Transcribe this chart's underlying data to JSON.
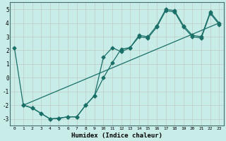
{
  "xlabel": "Humidex (Indice chaleur)",
  "background_color": "#c8ece8",
  "grid_color": "#c0d0c8",
  "line_color": "#1a7068",
  "xlim": [
    -0.5,
    23.5
  ],
  "ylim": [
    -3.5,
    5.5
  ],
  "xticks": [
    0,
    1,
    2,
    3,
    4,
    5,
    6,
    7,
    8,
    9,
    10,
    11,
    12,
    13,
    14,
    15,
    16,
    17,
    18,
    19,
    20,
    21,
    22,
    23
  ],
  "yticks": [
    -3,
    -2,
    -1,
    0,
    1,
    2,
    3,
    4,
    5
  ],
  "line1_x": [
    0,
    1,
    2,
    3,
    4,
    5,
    6,
    7,
    8,
    9,
    10,
    11,
    12,
    13,
    14,
    15,
    16,
    17,
    18,
    19,
    20,
    21,
    22,
    23
  ],
  "line1_y": [
    2.2,
    -2.0,
    -2.2,
    -2.6,
    -3.0,
    -2.95,
    -2.85,
    -2.85,
    -2.0,
    -1.3,
    1.5,
    2.2,
    1.9,
    2.2,
    3.1,
    3.0,
    3.8,
    5.0,
    4.9,
    3.8,
    3.1,
    3.0,
    4.8,
    4.0
  ],
  "line2_x": [
    1,
    2,
    3,
    4,
    5,
    6,
    7,
    8,
    9,
    10,
    11,
    12,
    13,
    14,
    15,
    16,
    17,
    18,
    19,
    20,
    21,
    22,
    23
  ],
  "line2_y": [
    -2.0,
    -2.2,
    -2.6,
    -3.0,
    -2.95,
    -2.85,
    -2.85,
    -2.0,
    -1.3,
    0.0,
    1.1,
    2.1,
    2.2,
    3.0,
    2.9,
    3.7,
    4.9,
    4.8,
    3.7,
    3.0,
    2.9,
    4.7,
    3.9
  ],
  "line3_x": [
    1,
    23
  ],
  "line3_y": [
    -2.0,
    4.0
  ],
  "marker": "D",
  "markersize": 2.5,
  "linewidth": 0.9
}
